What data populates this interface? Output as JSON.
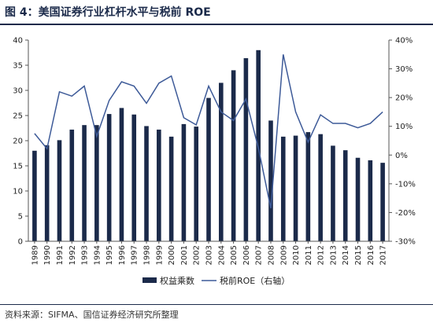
{
  "title": "图 4：美国证券行业杠杆水平与税前 ROE",
  "source": "资料来源：SIFMA、国信证券经济研究所整理",
  "colors": {
    "bar": "#1b2a4a",
    "line": "#3d5a98",
    "accent": "#1b2a4a"
  },
  "chart_data": {
    "type": "bar",
    "title": "图 4：美国证券行业杠杆水平与税前 ROE",
    "categories": [
      "1989",
      "1990",
      "1991",
      "1992",
      "1993",
      "1994",
      "1995",
      "1996",
      "1997",
      "1998",
      "1999",
      "2000",
      "2001",
      "2002",
      "2003",
      "2004",
      "2005",
      "2006",
      "2007",
      "2008",
      "2009",
      "2010",
      "2011",
      "2012",
      "2013",
      "2014",
      "2015",
      "2016",
      "2017"
    ],
    "ylim": [
      0,
      40
    ],
    "y_ticks": [
      "0",
      "5",
      "10",
      "15",
      "20",
      "25",
      "30",
      "35",
      "40"
    ],
    "y2lim": [
      -30,
      40
    ],
    "y2_ticks": [
      "-30%",
      "-20%",
      "-10%",
      "0%",
      "10%",
      "20%",
      "30%",
      "40%"
    ],
    "legend_position": "bottom",
    "grid": false,
    "series": [
      {
        "name": "权益乘数",
        "type": "bar",
        "axis": "left",
        "values": [
          18.0,
          19.1,
          20.1,
          22.2,
          23.1,
          23.1,
          25.3,
          26.5,
          25.2,
          22.9,
          22.2,
          20.8,
          23.3,
          22.8,
          28.5,
          31.5,
          34.0,
          36.4,
          38.0,
          24.0,
          20.8,
          21.0,
          21.7,
          21.3,
          19.0,
          18.1,
          16.6,
          16.1,
          15.6
        ]
      },
      {
        "name": "税前ROE（右轴）",
        "type": "line",
        "axis": "right",
        "values": [
          7.5,
          2.2,
          22.0,
          20.5,
          24.0,
          6.5,
          19.0,
          25.5,
          24.0,
          18.0,
          25.0,
          27.5,
          13.0,
          10.5,
          24.0,
          15.0,
          12.0,
          19.5,
          2.5,
          -18.5,
          35.0,
          15.0,
          4.5,
          14.0,
          11.0,
          11.0,
          9.5,
          11.0,
          15.0
        ]
      }
    ]
  }
}
